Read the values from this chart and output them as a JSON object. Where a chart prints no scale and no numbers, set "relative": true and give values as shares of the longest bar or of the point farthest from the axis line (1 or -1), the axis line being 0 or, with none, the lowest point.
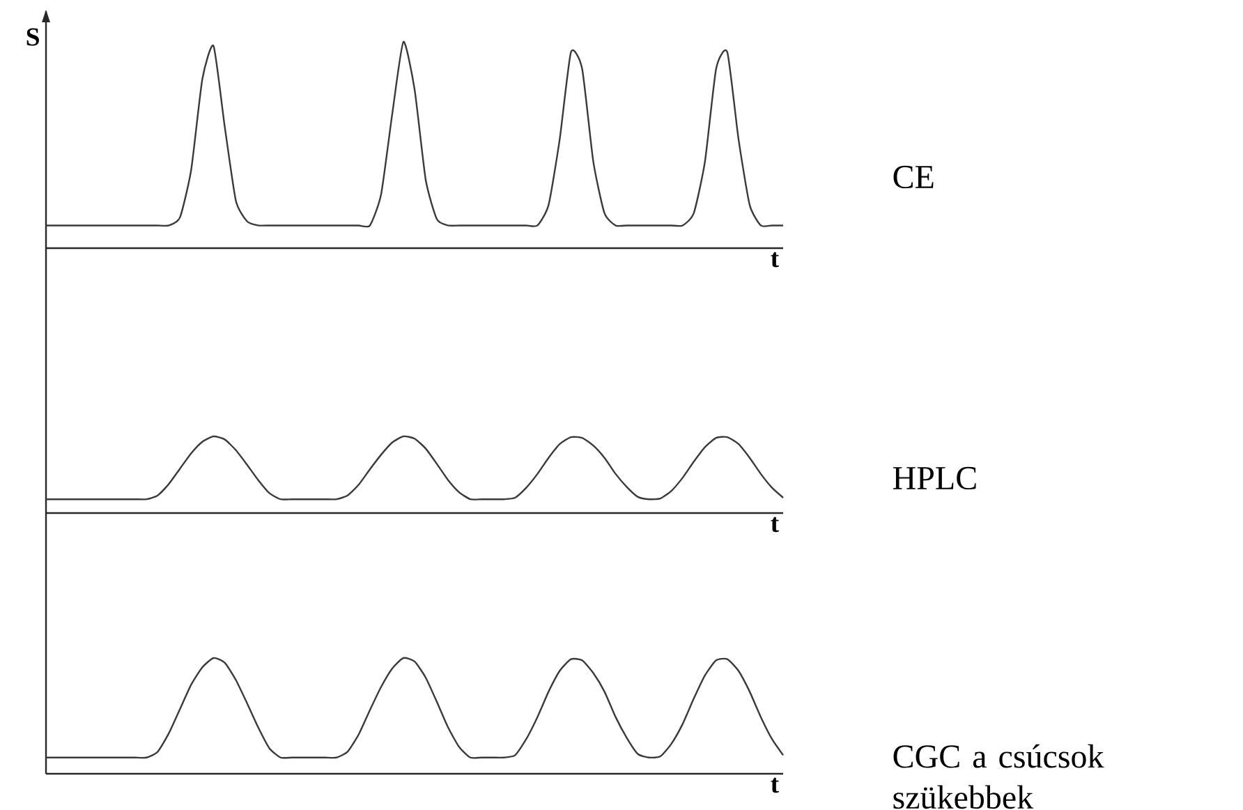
{
  "chart_data": [
    {
      "type": "line",
      "relative": true,
      "ylabel": "S",
      "xlabel": "t",
      "legend": false,
      "marker": "none",
      "categories": [
        null,
        null,
        null,
        null,
        null,
        null,
        null,
        null,
        null,
        null,
        null,
        null,
        null,
        null,
        null,
        null,
        null,
        null,
        null,
        null,
        null,
        null,
        null,
        null,
        null,
        null,
        null,
        null,
        null,
        null,
        null,
        null,
        null,
        null,
        null,
        null,
        null,
        null,
        null,
        null,
        null,
        null,
        null,
        null,
        null,
        null,
        null,
        null,
        null,
        null,
        null,
        null,
        null,
        null,
        null,
        null,
        null,
        null,
        null,
        null,
        null,
        null,
        null,
        null,
        null,
        null,
        null
      ],
      "series": [
        {
          "name": "CE",
          "color": "#3a3a3a",
          "values": [
            0.11,
            0.11,
            0.11,
            0.11,
            0.11,
            0.11,
            0.11,
            0.11,
            0.11,
            0.11,
            0.11,
            0.11,
            0.15,
            0.38,
            0.82,
            0.98,
            0.59,
            0.23,
            0.13,
            0.11,
            0.11,
            0.11,
            0.11,
            0.11,
            0.11,
            0.11,
            0.11,
            0.11,
            0.11,
            0.11,
            0.26,
            0.65,
            1.0,
            0.77,
            0.33,
            0.14,
            0.11,
            0.11,
            0.11,
            0.11,
            0.11,
            0.11,
            0.11,
            0.11,
            0.11,
            0.21,
            0.53,
            0.95,
            0.87,
            0.42,
            0.17,
            0.11,
            0.11,
            0.11,
            0.11,
            0.11,
            0.11,
            0.11,
            0.17,
            0.42,
            0.87,
            0.95,
            0.53,
            0.21,
            0.11,
            0.11,
            0.11
          ]
        }
      ]
    },
    {
      "type": "line",
      "relative": true,
      "xlabel": "t",
      "legend": false,
      "marker": "none",
      "categories": [
        null,
        null,
        null,
        null,
        null,
        null,
        null,
        null,
        null,
        null,
        null,
        null,
        null,
        null,
        null,
        null,
        null,
        null,
        null,
        null,
        null,
        null,
        null,
        null,
        null,
        null,
        null,
        null,
        null,
        null,
        null,
        null,
        null,
        null,
        null,
        null,
        null,
        null,
        null,
        null,
        null,
        null,
        null,
        null,
        null,
        null,
        null,
        null,
        null,
        null,
        null,
        null,
        null,
        null,
        null,
        null,
        null,
        null,
        null,
        null,
        null,
        null,
        null,
        null,
        null,
        null,
        null
      ],
      "series": [
        {
          "name": "HPLC",
          "color": "#3a3a3a",
          "values": [
            0.18,
            0.18,
            0.18,
            0.18,
            0.18,
            0.18,
            0.18,
            0.18,
            0.18,
            0.18,
            0.23,
            0.38,
            0.58,
            0.78,
            0.93,
            1.0,
            0.96,
            0.82,
            0.63,
            0.43,
            0.26,
            0.18,
            0.18,
            0.18,
            0.18,
            0.18,
            0.18,
            0.23,
            0.37,
            0.57,
            0.76,
            0.92,
            1.0,
            0.97,
            0.84,
            0.64,
            0.43,
            0.27,
            0.18,
            0.18,
            0.18,
            0.18,
            0.2,
            0.33,
            0.51,
            0.72,
            0.9,
            0.99,
            0.98,
            0.88,
            0.72,
            0.51,
            0.34,
            0.21,
            0.18,
            0.19,
            0.29,
            0.46,
            0.67,
            0.86,
            0.98,
            0.99,
            0.9,
            0.72,
            0.51,
            0.33,
            0.2
          ]
        }
      ]
    },
    {
      "type": "line",
      "relative": true,
      "xlabel": "t",
      "legend": false,
      "marker": "none",
      "categories": [
        null,
        null,
        null,
        null,
        null,
        null,
        null,
        null,
        null,
        null,
        null,
        null,
        null,
        null,
        null,
        null,
        null,
        null,
        null,
        null,
        null,
        null,
        null,
        null,
        null,
        null,
        null,
        null,
        null,
        null,
        null,
        null,
        null,
        null,
        null,
        null,
        null,
        null,
        null,
        null,
        null,
        null,
        null,
        null,
        null,
        null,
        null,
        null,
        null,
        null,
        null,
        null,
        null,
        null,
        null,
        null,
        null,
        null,
        null,
        null,
        null,
        null,
        null,
        null,
        null,
        null,
        null
      ],
      "series": [
        {
          "name": "CGC a csúcsok szükebbek",
          "color": "#3a3a3a",
          "values": [
            0.14,
            0.14,
            0.14,
            0.14,
            0.14,
            0.14,
            0.14,
            0.14,
            0.14,
            0.14,
            0.19,
            0.35,
            0.56,
            0.77,
            0.92,
            1.0,
            0.96,
            0.81,
            0.61,
            0.4,
            0.22,
            0.14,
            0.14,
            0.14,
            0.14,
            0.14,
            0.14,
            0.19,
            0.34,
            0.55,
            0.75,
            0.91,
            1.0,
            0.97,
            0.83,
            0.62,
            0.4,
            0.23,
            0.14,
            0.14,
            0.14,
            0.14,
            0.16,
            0.3,
            0.49,
            0.71,
            0.89,
            0.99,
            0.98,
            0.87,
            0.71,
            0.49,
            0.31,
            0.17,
            0.14,
            0.15,
            0.26,
            0.43,
            0.65,
            0.85,
            0.98,
            0.99,
            0.89,
            0.71,
            0.49,
            0.3,
            0.16
          ]
        }
      ]
    }
  ]
}
